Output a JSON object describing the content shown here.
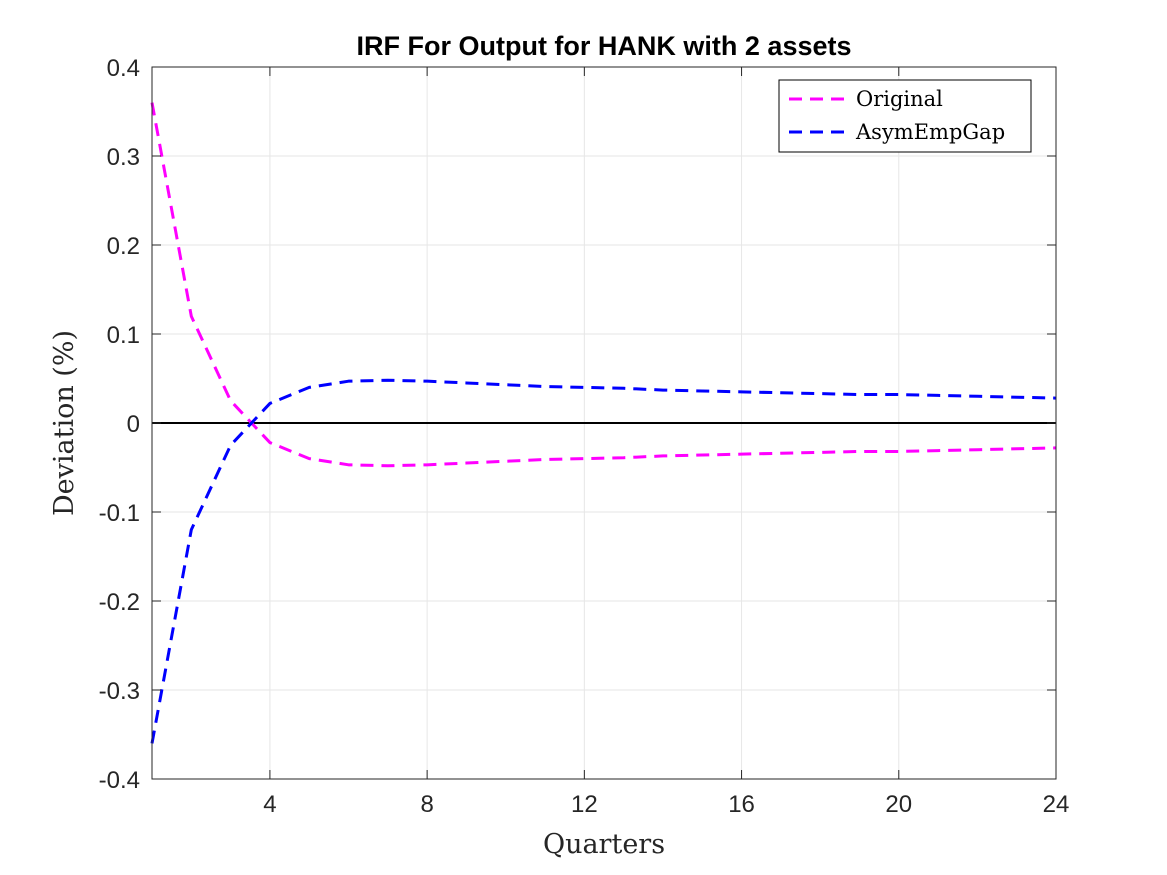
{
  "chart_data": {
    "type": "line",
    "title": "IRF For Output for HANK with 2 assets",
    "xlabel": "Quarters",
    "ylabel": "Deviation (%)",
    "xlim": [
      1,
      24
    ],
    "ylim": [
      -0.4,
      0.4
    ],
    "xticks": [
      4,
      8,
      12,
      16,
      20,
      24
    ],
    "yticks": [
      0.4,
      0.3,
      0.2,
      0.1,
      0,
      -0.1,
      -0.2,
      -0.3,
      -0.4
    ],
    "ytick_labels": [
      "0.4",
      "0.3",
      "0.2",
      "0.1",
      "0",
      "-0.1",
      "-0.2",
      "-0.3",
      "-0.4"
    ],
    "grid": true,
    "legend_position": "top-right",
    "reference_line_y": 0,
    "x": [
      1,
      2,
      3,
      4,
      5,
      6,
      7,
      8,
      9,
      10,
      11,
      12,
      13,
      14,
      15,
      16,
      17,
      18,
      19,
      20,
      21,
      22,
      23,
      24
    ],
    "series": [
      {
        "name": "Original",
        "color": "#ff00ff",
        "style": "dashed",
        "values": [
          0.36,
          0.12,
          0.025,
          -0.022,
          -0.04,
          -0.047,
          -0.048,
          -0.047,
          -0.045,
          -0.043,
          -0.041,
          -0.04,
          -0.039,
          -0.037,
          -0.036,
          -0.035,
          -0.034,
          -0.033,
          -0.032,
          -0.032,
          -0.031,
          -0.03,
          -0.029,
          -0.028
        ]
      },
      {
        "name": "AsymEmpGap",
        "color": "#0000ff",
        "style": "dashed",
        "values": [
          -0.36,
          -0.12,
          -0.025,
          0.022,
          0.04,
          0.047,
          0.048,
          0.047,
          0.045,
          0.043,
          0.041,
          0.04,
          0.039,
          0.037,
          0.036,
          0.035,
          0.034,
          0.033,
          0.032,
          0.032,
          0.031,
          0.03,
          0.029,
          0.028
        ]
      }
    ]
  }
}
